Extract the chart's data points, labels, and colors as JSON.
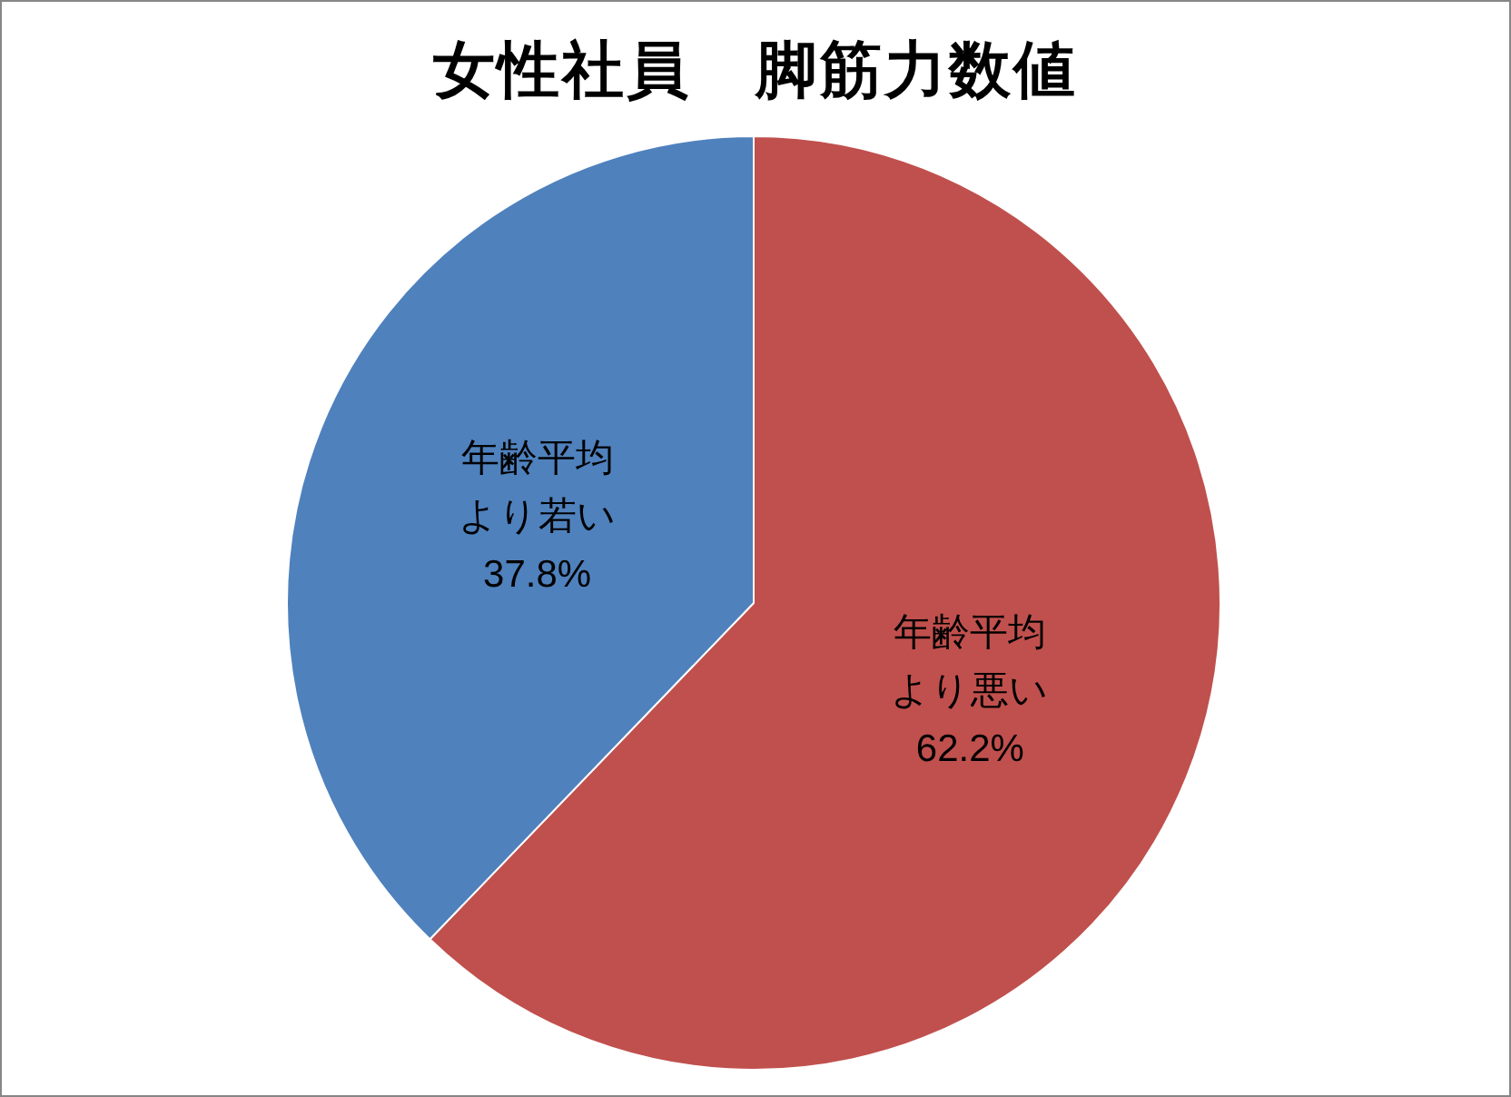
{
  "chart_data": {
    "type": "pie",
    "title": "女性社員　脚筋力数値",
    "categories": [
      "年齢平均より悪い",
      "年齢平均より若い"
    ],
    "values": [
      62.2,
      37.8
    ],
    "value_labels": [
      "62.2%",
      "37.8%"
    ],
    "colors": [
      "#c0504d",
      "#4f81bd"
    ]
  }
}
